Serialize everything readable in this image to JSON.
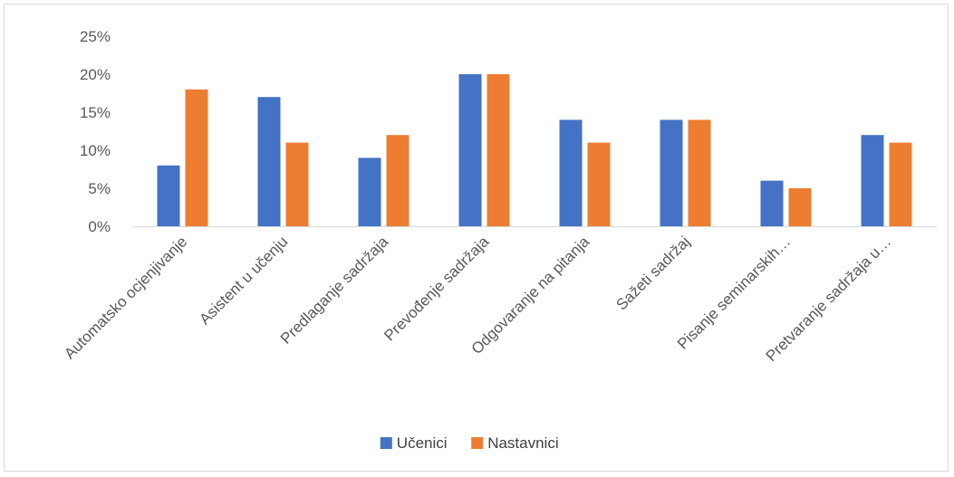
{
  "chart_data": {
    "type": "bar",
    "title": "",
    "xlabel": "",
    "ylabel": "",
    "ylim": [
      0,
      25
    ],
    "y_ticks": [
      "0%",
      "5%",
      "10%",
      "15%",
      "20%",
      "25%"
    ],
    "y_tick_values": [
      0,
      5,
      10,
      15,
      20,
      25
    ],
    "grid": false,
    "legend_position": "bottom",
    "categories": [
      "Automatsko ocjenjivanje",
      "Asistent u učenju",
      "Predlaganje sadržaja",
      "Prevođenje sadržaja",
      "Odgovaranje na pitanja",
      "Sažeti sadržaj",
      "Pisanje seminarskih…",
      "Pretvaranje sadržaja u…"
    ],
    "series": [
      {
        "name": "Učenici",
        "color": "#4472c4",
        "values": [
          8,
          17,
          9,
          20,
          14,
          14,
          6,
          12
        ]
      },
      {
        "name": "Nastavnici",
        "color": "#ed7d31",
        "values": [
          18,
          11,
          12,
          20,
          11,
          14,
          5,
          11
        ]
      }
    ]
  }
}
